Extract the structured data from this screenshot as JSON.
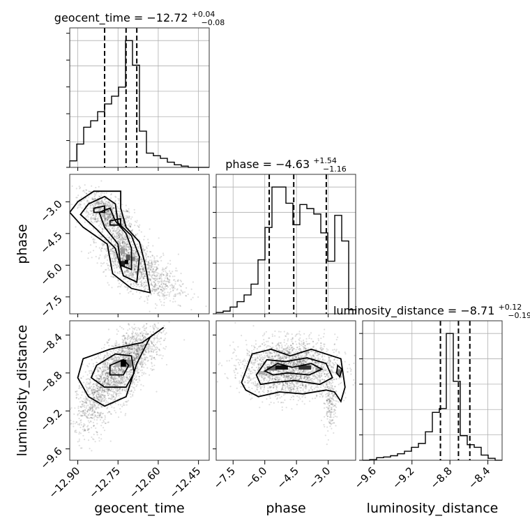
{
  "chart_data": {
    "type": "corner",
    "parameters": [
      "geocent_time",
      "phase",
      "luminosity_distance"
    ],
    "axis_labels": {
      "geocent_time": "geocent_time",
      "phase": "phase",
      "luminosity_distance": "luminosity_distance"
    },
    "titles": {
      "geocent_time": {
        "text": "geocent_time = −12.72",
        "plus": "+0.04",
        "minus": "−0.08"
      },
      "phase": {
        "text": "phase = −4.63",
        "plus": "+1.54",
        "minus": "−1.16"
      },
      "luminosity_distance": {
        "text": "luminosity_distance = −8.71",
        "plus": "+0.12",
        "minus": "−0.19"
      }
    },
    "ranges": {
      "geocent_time": [
        -12.93,
        -12.41
      ],
      "phase": [
        -8.3,
        -1.7
      ],
      "luminosity_distance": [
        -9.72,
        -8.25
      ]
    },
    "ticks": {
      "geocent_time": {
        "values": [
          -12.9,
          -12.75,
          -12.6,
          -12.45
        ],
        "labels": [
          "−12.90",
          "−12.75",
          "−12.60",
          "−12.45"
        ]
      },
      "phase": {
        "values": [
          -7.5,
          -6.0,
          -4.5,
          -3.0
        ],
        "labels": [
          "−7.5",
          "−6.0",
          "−4.5",
          "−3.0"
        ]
      },
      "luminosity_distance": {
        "values": [
          -9.6,
          -9.2,
          -8.8,
          -8.4
        ],
        "labels": [
          "−9.6",
          "−9.2",
          "−8.8",
          "−8.4"
        ]
      }
    },
    "quantiles": {
      "geocent_time": [
        -12.8,
        -12.72,
        -12.68
      ],
      "phase": [
        -5.79,
        -4.63,
        -3.09
      ],
      "luminosity_distance": [
        -8.9,
        -8.71,
        -8.59
      ]
    },
    "histograms": {
      "geocent_time": {
        "edges": [
          -12.93,
          -12.904,
          -12.878,
          -12.852,
          -12.826,
          -12.8,
          -12.774,
          -12.748,
          -12.722,
          -12.696,
          -12.67,
          -12.644,
          -12.618,
          -12.592,
          -12.566,
          -12.54,
          -12.514,
          -12.488,
          -12.462,
          -12.436,
          -12.41
        ],
        "counts": [
          0.05,
          0.18,
          0.31,
          0.36,
          0.43,
          0.49,
          0.55,
          0.62,
          0.98,
          0.79,
          0.28,
          0.11,
          0.09,
          0.07,
          0.04,
          0.02,
          0.01,
          0,
          0,
          0
        ]
      },
      "phase": {
        "edges": [
          -8.3,
          -7.97,
          -7.64,
          -7.31,
          -6.98,
          -6.65,
          -6.32,
          -5.99,
          -5.66,
          -5.33,
          -5.0,
          -4.67,
          -4.34,
          -4.01,
          -3.68,
          -3.35,
          -3.02,
          -2.69,
          -2.36,
          -2.03,
          -1.7
        ],
        "counts": [
          0.01,
          0.02,
          0.05,
          0.09,
          0.14,
          0.22,
          0.4,
          0.64,
          0.94,
          0.94,
          0.82,
          0.66,
          0.81,
          0.78,
          0.74,
          0.6,
          0.39,
          0.73,
          0.54,
          0.03
        ]
      },
      "luminosity_distance": {
        "edges": [
          -9.72,
          -9.6465,
          -9.573,
          -9.4995,
          -9.426,
          -9.3525,
          -9.279,
          -9.2055,
          -9.132,
          -9.0585,
          -8.985,
          -8.9115,
          -8.838,
          -8.7645,
          -8.691,
          -8.6175,
          -8.544,
          -8.4705,
          -8.397,
          -8.3235,
          -8.25
        ],
        "counts": [
          0,
          0.005,
          0.02,
          0.025,
          0.035,
          0.05,
          0.07,
          0.1,
          0.13,
          0.22,
          0.37,
          0.4,
          0.98,
          0.61,
          0.19,
          0.12,
          0.1,
          0.04,
          0.015,
          0
        ]
      }
    }
  }
}
